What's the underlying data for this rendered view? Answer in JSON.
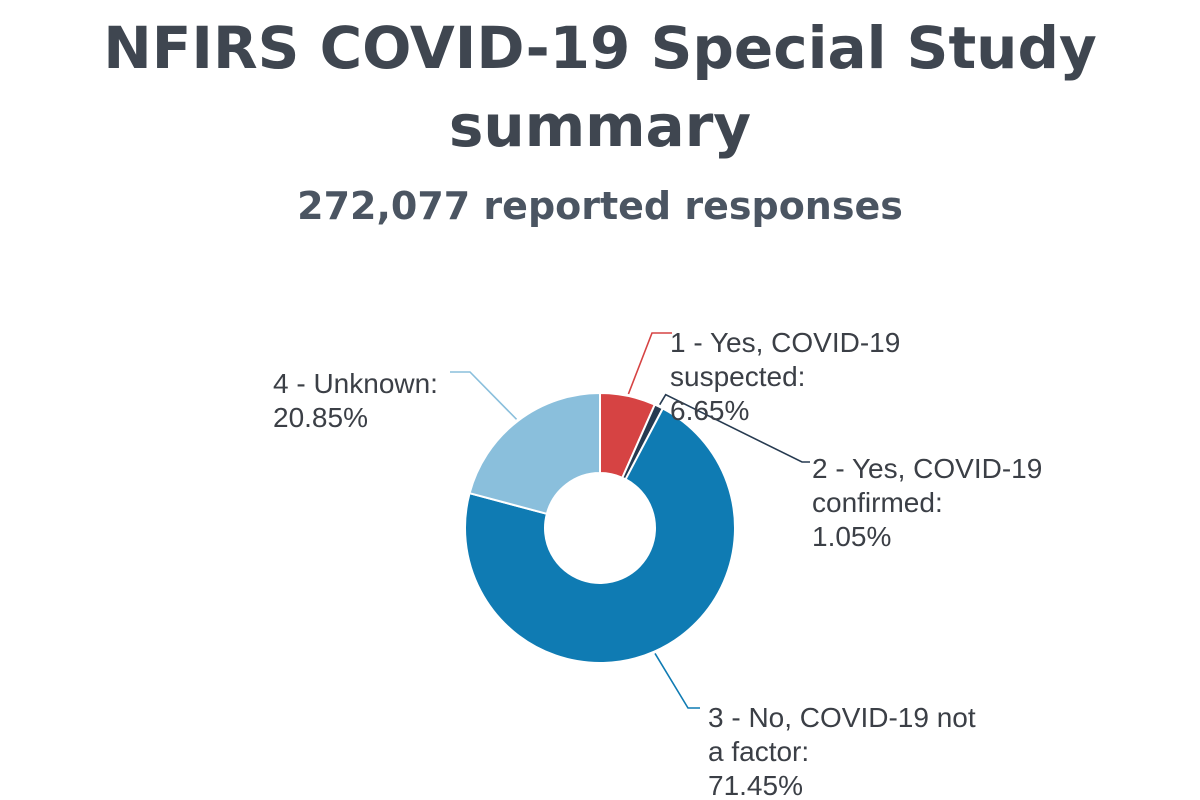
{
  "title_lines": [
    "NFIRS COVID-19 Special Study",
    "summary"
  ],
  "subtitle": "272,077 reported responses",
  "chart_data": {
    "type": "pie",
    "donut": true,
    "title": "NFIRS COVID-19 Special Study summary",
    "subtitle": "272,077 reported responses",
    "slices": [
      {
        "label_lines": [
          "1 - Yes, COVID-19",
          "suspected:",
          "6.65%"
        ],
        "value": 6.65,
        "color": "#d64343"
      },
      {
        "label_lines": [
          "2 - Yes, COVID-19",
          "confirmed:",
          "1.05%"
        ],
        "value": 1.05,
        "color": "#263a50"
      },
      {
        "label_lines": [
          "3 - No, COVID-19 not",
          "a factor:",
          "71.45%"
        ],
        "value": 71.45,
        "color": "#0f7bb3"
      },
      {
        "label_lines": [
          "4 - Unknown:",
          "20.85%"
        ],
        "value": 20.85,
        "color": "#8abfdc"
      }
    ]
  }
}
